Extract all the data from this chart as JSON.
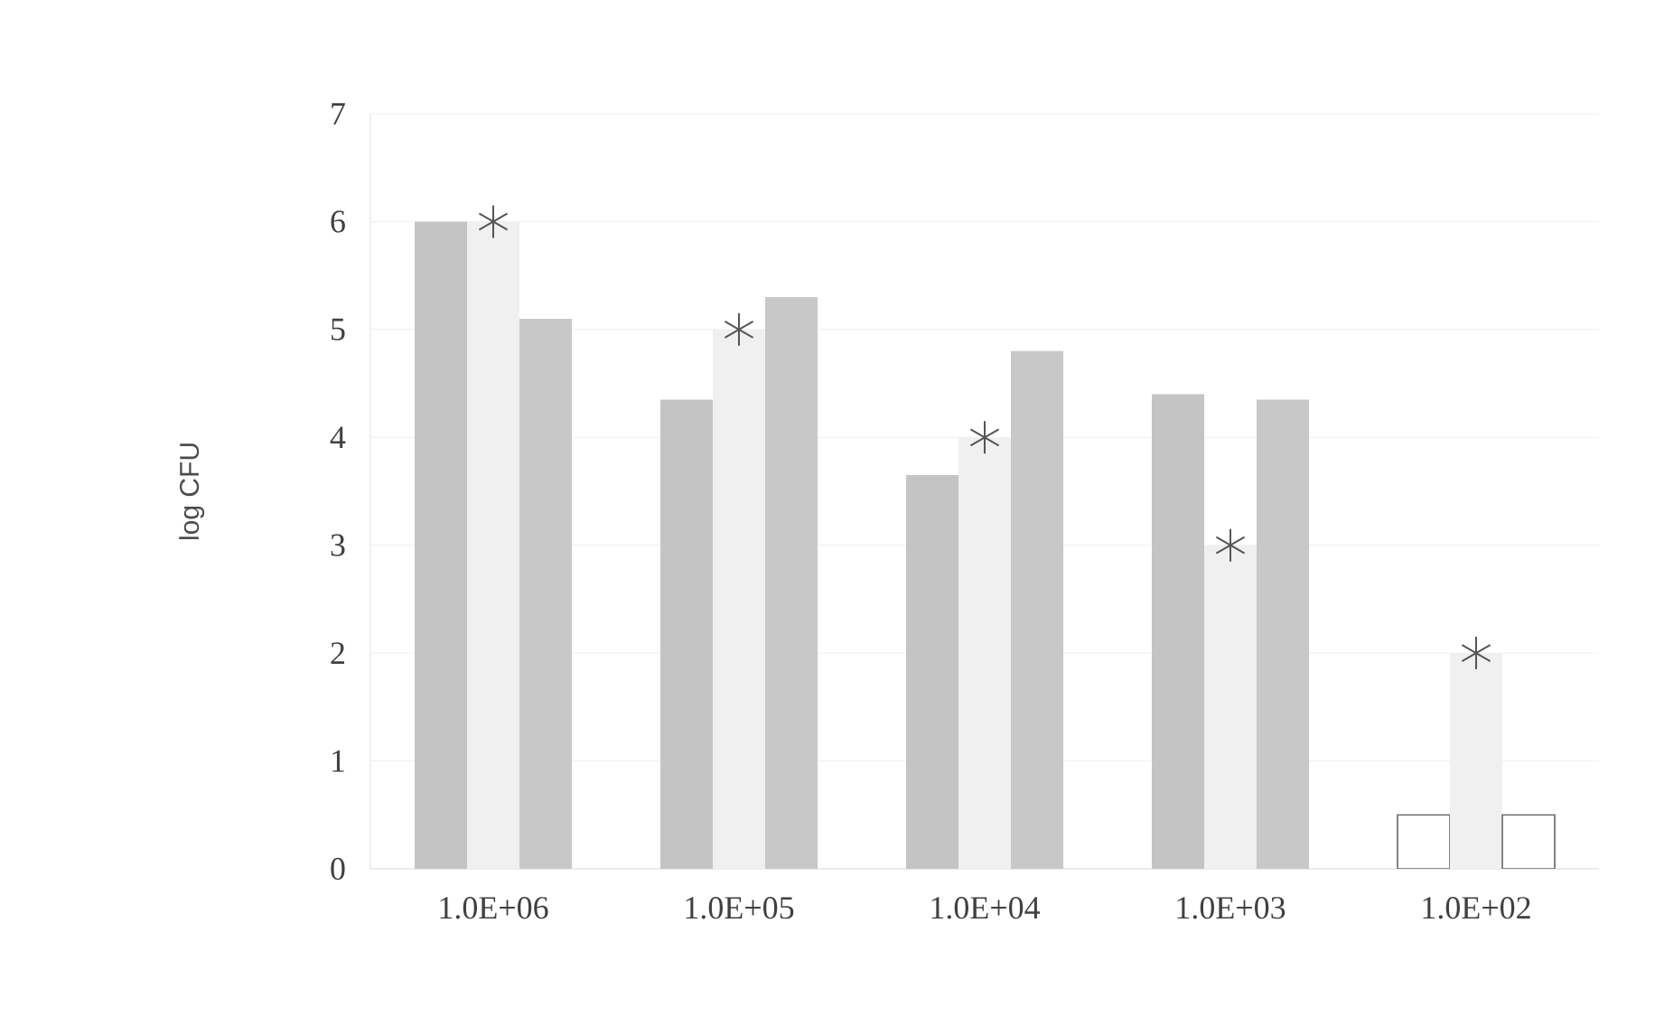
{
  "chart_data": {
    "type": "bar",
    "ylabel": "log CFU",
    "categories": [
      "1.0E+06",
      "1.0E+05",
      "1.0E+04",
      "1.0E+03",
      "1.0E+02"
    ],
    "ylim": [
      0,
      7
    ],
    "yticks": [
      0,
      1,
      2,
      3,
      4,
      5,
      6,
      7
    ],
    "grid": "y",
    "series": [
      {
        "color": "#c4c4c4",
        "colors": [
          "#c4c4c4",
          "#c4c4c4",
          "#c4c4c4",
          "#c4c4c4",
          "#ffffff"
        ],
        "values": [
          6.0,
          4.35,
          3.65,
          4.4,
          0.5
        ]
      },
      {
        "color": "#f0f0f0",
        "values": [
          6,
          5,
          4,
          3,
          2
        ]
      },
      {
        "color": "#c8c8c8",
        "colors": [
          "#c8c8c8",
          "#c8c8c8",
          "#c8c8c8",
          "#c8c8c8",
          "#ffffff"
        ],
        "values": [
          5.1,
          5.3,
          4.8,
          4.35,
          0.5
        ]
      },
      {
        "type": "scatter",
        "x": [
          "1.0E+06",
          "1.0E+05",
          "1.0E+04",
          "1.0E+03",
          "1.0E+02"
        ],
        "values": [
          6,
          5,
          4,
          3,
          2
        ],
        "color": "#555555",
        "marker": "cross"
      }
    ]
  }
}
